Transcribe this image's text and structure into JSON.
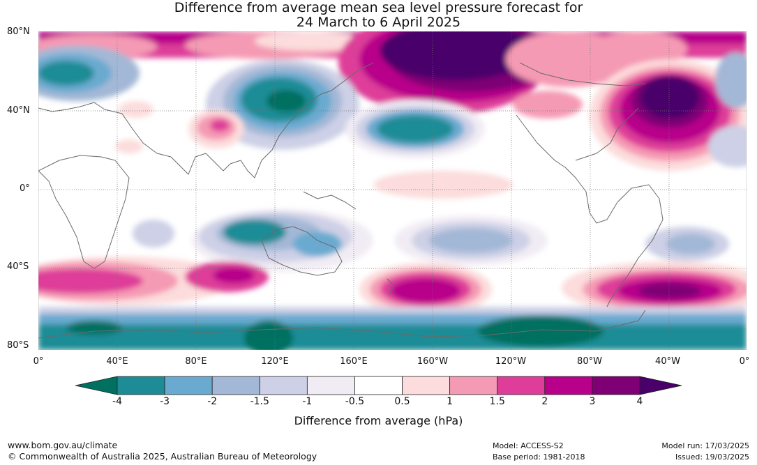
{
  "title_line1": "Difference from average mean sea level pressure forecast for",
  "title_line2": "24 March to 6 April 2025",
  "lat_labels": [
    "80°N",
    "40°N",
    "0°",
    "40°S",
    "80°S"
  ],
  "lon_labels": [
    "0°",
    "40°E",
    "80°E",
    "120°E",
    "160°E",
    "160°W",
    "120°W",
    "80°W",
    "40°W",
    "0°"
  ],
  "colorbar": {
    "title": "Difference from average (hPa)",
    "tick_labels": [
      "-4",
      "-3",
      "-2",
      "-1.5",
      "-1",
      "-0.5",
      "0.5",
      "1",
      "1.5",
      "2",
      "3",
      "4"
    ],
    "colors": [
      "#007060",
      "#1e8c96",
      "#6aaad0",
      "#a3b8d6",
      "#cdd0e6",
      "#f1ecf4",
      "#ffffff",
      "#fcdcdc",
      "#f59ab4",
      "#de3d99",
      "#b8008a",
      "#7e0074",
      "#4a006a"
    ]
  },
  "footer": {
    "website": "www.bom.gov.au/climate",
    "copyright": "© Commonwealth of Australia 2025, Australian Bureau of Meteorology",
    "model": "Model: ACCESS-S2",
    "base_period": "Base period: 1981-2018",
    "model_run": "Model run: 17/03/2025",
    "issued": "Issued: 19/03/2025"
  }
}
